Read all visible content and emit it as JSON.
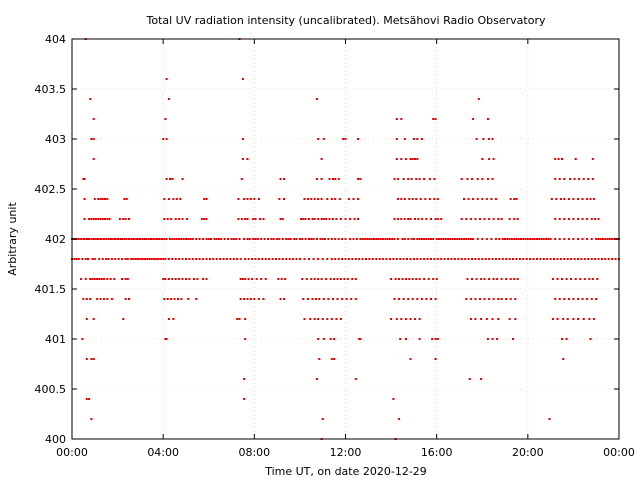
{
  "chart_data": {
    "type": "scatter",
    "title": "Total UV radiation intensity (uncalibrated). Metsähovi Radio Observatory",
    "xlabel": "Time UT, on date 2020-12-29",
    "ylabel": "Arbitrary unit",
    "xlim": [
      0,
      24
    ],
    "ylim": [
      400,
      404
    ],
    "x_ticks": [
      {
        "value": 0,
        "label": "00:00"
      },
      {
        "value": 4,
        "label": "04:00"
      },
      {
        "value": 8,
        "label": "08:00"
      },
      {
        "value": 12,
        "label": "12:00"
      },
      {
        "value": 16,
        "label": "16:00"
      },
      {
        "value": 20,
        "label": "20:00"
      },
      {
        "value": 24,
        "label": "00:00"
      }
    ],
    "y_ticks": [
      {
        "value": 400,
        "label": "400"
      },
      {
        "value": 400.5,
        "label": "400.5"
      },
      {
        "value": 401,
        "label": "401"
      },
      {
        "value": 401.5,
        "label": "401.5"
      },
      {
        "value": 402,
        "label": "402"
      },
      {
        "value": 402.5,
        "label": "402.5"
      },
      {
        "value": 403,
        "label": "403"
      },
      {
        "value": 403.5,
        "label": "403.5"
      },
      {
        "value": 404,
        "label": "404"
      }
    ],
    "grid": true,
    "marker_color": "#e00000",
    "series": [
      {
        "y": 402.0,
        "x": [
          0.0,
          0.05,
          0.1,
          0.15,
          0.2,
          0.3,
          0.4,
          0.5,
          0.55,
          0.65,
          0.7,
          0.75,
          0.85,
          0.95,
          1.0,
          1.1,
          1.15,
          1.25,
          1.3,
          1.4,
          1.5,
          1.6,
          1.7,
          1.75,
          1.85,
          1.9,
          2.0,
          2.05,
          2.15,
          2.2,
          2.3,
          2.4,
          2.5,
          2.6,
          2.7,
          2.75,
          2.85,
          2.95,
          3.0,
          3.1,
          3.2,
          3.25,
          3.35,
          3.45,
          3.5,
          3.6,
          3.7,
          3.75,
          3.85,
          3.95,
          4.05,
          4.15,
          4.3,
          4.4,
          4.5,
          4.6,
          4.7,
          4.8,
          4.9,
          5.0,
          5.1,
          5.2,
          5.3,
          5.45,
          5.6,
          5.75,
          5.9,
          6.0,
          6.1,
          6.25,
          6.35,
          6.45,
          6.55,
          6.7,
          6.85,
          7.0,
          7.1,
          7.2,
          7.35,
          7.55,
          7.7,
          7.8,
          7.95,
          8.05,
          8.15,
          8.3,
          8.45,
          8.6,
          8.75,
          8.85,
          9.0,
          9.1,
          9.25,
          9.4,
          9.5,
          9.6,
          9.75,
          9.85,
          10.0,
          10.1,
          10.25,
          10.4,
          10.5,
          10.6,
          10.75,
          10.9,
          11.0,
          11.1,
          11.25,
          11.4,
          11.55,
          11.7,
          11.85,
          12.0,
          12.2,
          12.35,
          12.5,
          12.65,
          12.75,
          12.85,
          12.95,
          13.05,
          13.15,
          13.25,
          13.35,
          13.45,
          13.55,
          13.65,
          13.75,
          13.85,
          13.95,
          14.05,
          14.15,
          14.3,
          14.5,
          14.6,
          14.75,
          14.9,
          15.0,
          15.15,
          15.25,
          15.35,
          15.45,
          15.55,
          15.65,
          15.75,
          15.85,
          16.0,
          16.1,
          16.2,
          16.3,
          16.4,
          16.5,
          16.6,
          16.7,
          16.8,
          16.9,
          17.0,
          17.1,
          17.2,
          17.3,
          17.4,
          17.5,
          17.6,
          17.8,
          18.0,
          18.2,
          18.4,
          18.6,
          18.75,
          18.9,
          19.0,
          19.1,
          19.2,
          19.3,
          19.4,
          19.5,
          19.6,
          19.7,
          19.8,
          19.9,
          20.0,
          20.1,
          20.2,
          20.3,
          20.4,
          20.5,
          20.6,
          20.7,
          20.8,
          20.9,
          21.0,
          21.2,
          21.4,
          21.6,
          21.8,
          22.0,
          22.2,
          22.4,
          22.6,
          22.8,
          23.0,
          23.1,
          23.2,
          23.3,
          23.4,
          23.5,
          23.6,
          23.7,
          23.8,
          23.9,
          24.0
        ]
      },
      {
        "y": 401.8,
        "x": [
          0.0,
          0.1,
          0.2,
          0.3,
          0.45,
          0.6,
          0.7,
          0.9,
          1.0,
          1.2,
          1.35,
          1.5,
          1.6,
          1.75,
          1.9,
          2.05,
          2.2,
          2.35,
          2.45,
          2.6,
          2.7,
          2.8,
          2.9,
          3.0,
          3.1,
          3.2,
          3.3,
          3.4,
          3.5,
          3.6,
          3.7,
          3.8,
          3.9,
          4.0,
          4.1,
          4.25,
          4.4,
          4.55,
          4.7,
          4.85,
          5.0,
          5.15,
          5.3,
          5.45,
          5.6,
          5.75,
          5.9,
          6.05,
          6.2,
          6.35,
          6.5,
          6.65,
          6.8,
          6.95,
          7.1,
          7.25,
          7.4,
          7.6,
          7.75,
          7.9,
          8.05,
          8.2,
          8.35,
          8.5,
          8.65,
          8.8,
          8.95,
          9.1,
          9.25,
          9.4,
          9.55,
          9.7,
          9.85,
          10.0,
          10.2,
          10.4,
          10.6,
          10.8,
          11.0,
          11.2,
          11.4,
          11.55,
          11.7,
          11.85,
          12.0,
          12.15,
          12.3,
          12.45,
          12.6,
          12.75,
          12.9,
          13.05,
          13.2,
          13.35,
          13.5,
          13.65,
          13.8,
          13.95,
          14.1,
          14.25,
          14.4,
          14.55,
          14.7,
          14.85,
          15.0,
          15.15,
          15.3,
          15.45,
          15.6,
          15.75,
          15.9,
          16.05,
          16.2,
          16.35,
          16.5,
          16.65,
          16.8,
          16.95,
          17.1,
          17.25,
          17.4,
          17.55,
          17.7,
          17.85,
          18.0,
          18.15,
          18.3,
          18.45,
          18.6,
          18.75,
          18.9,
          19.05,
          19.2,
          19.35,
          19.5,
          19.65,
          19.8,
          19.95,
          20.1,
          20.25,
          20.4,
          20.55,
          20.7,
          20.85,
          21.0,
          21.15,
          21.3,
          21.45,
          21.6,
          21.75,
          21.9,
          22.05,
          22.2,
          22.35,
          22.5,
          22.65,
          22.8,
          22.95,
          23.1,
          23.25,
          23.4,
          23.55,
          23.7,
          23.85,
          24.0
        ]
      },
      {
        "y": 402.2,
        "x": [
          0.55,
          0.75,
          0.85,
          0.95,
          1.05,
          1.15,
          1.25,
          1.35,
          1.45,
          1.55,
          1.65,
          2.1,
          2.25,
          2.35,
          2.5,
          4.05,
          4.2,
          4.35,
          4.55,
          4.7,
          4.85,
          5.05,
          5.7,
          5.8,
          5.9,
          7.3,
          7.45,
          7.6,
          7.7,
          7.95,
          8.05,
          8.25,
          8.4,
          9.15,
          9.25,
          10.05,
          10.15,
          10.25,
          10.4,
          10.55,
          10.65,
          10.8,
          10.95,
          11.05,
          11.15,
          11.3,
          11.45,
          11.6,
          11.8,
          12.0,
          12.2,
          12.4,
          12.55,
          14.15,
          14.3,
          14.45,
          14.6,
          14.75,
          14.85,
          15.05,
          15.2,
          15.35,
          15.55,
          15.75,
          15.95,
          16.05,
          16.2,
          17.1,
          17.3,
          17.5,
          17.7,
          17.9,
          18.1,
          18.3,
          18.5,
          18.7,
          18.85,
          19.2,
          19.4,
          19.55,
          21.2,
          21.4,
          21.6,
          21.8,
          22.0,
          22.2,
          22.4,
          22.6,
          22.8,
          22.95,
          23.1
        ]
      },
      {
        "y": 401.6,
        "x": [
          0.4,
          0.6,
          0.8,
          0.9,
          1.0,
          1.1,
          1.2,
          1.3,
          1.4,
          1.55,
          1.7,
          1.85,
          2.2,
          2.35,
          2.45,
          4.0,
          4.1,
          4.25,
          4.4,
          4.55,
          4.7,
          4.85,
          5.0,
          5.15,
          5.35,
          5.5,
          5.75,
          5.9,
          7.4,
          7.5,
          7.6,
          7.75,
          7.9,
          8.1,
          8.3,
          8.5,
          9.05,
          9.2,
          9.35,
          10.1,
          10.3,
          10.5,
          10.65,
          10.8,
          10.95,
          11.15,
          11.35,
          11.5,
          11.65,
          11.8,
          11.95,
          12.1,
          12.3,
          12.45,
          14.0,
          14.2,
          14.35,
          14.5,
          14.65,
          14.8,
          14.95,
          15.1,
          15.25,
          15.45,
          15.65,
          15.85,
          16.0,
          17.35,
          17.55,
          17.75,
          17.95,
          18.1,
          18.3,
          18.5,
          18.65,
          18.85,
          19.05,
          19.25,
          19.4,
          19.55,
          21.1,
          21.3,
          21.5,
          21.7,
          21.9,
          22.1,
          22.3,
          22.5,
          22.7,
          22.85,
          23.05
        ]
      },
      {
        "y": 402.4,
        "x": [
          0.55,
          1.0,
          1.15,
          1.25,
          1.35,
          1.45,
          1.55,
          2.3,
          2.4,
          4.05,
          4.25,
          4.45,
          4.6,
          4.75,
          5.8,
          5.9,
          7.3,
          7.55,
          7.7,
          7.85,
          8.0,
          8.2,
          9.1,
          9.3,
          10.2,
          10.35,
          10.5,
          10.65,
          10.8,
          10.95,
          11.2,
          11.4,
          11.55,
          11.75,
          12.15,
          12.35,
          12.55,
          14.3,
          14.45,
          14.6,
          14.8,
          14.95,
          15.1,
          15.3,
          15.5,
          15.7,
          15.9,
          16.05,
          17.2,
          17.4,
          17.6,
          17.8,
          18.0,
          18.2,
          18.4,
          18.6,
          19.25,
          19.4,
          19.5,
          21.05,
          21.25,
          21.45,
          21.6,
          21.8,
          22.0,
          22.2,
          22.4,
          22.6,
          22.75,
          22.9
        ]
      },
      {
        "y": 401.4,
        "x": [
          0.5,
          0.65,
          0.8,
          1.1,
          1.25,
          1.4,
          1.55,
          1.75,
          2.35,
          2.5,
          4.05,
          4.2,
          4.35,
          4.5,
          4.65,
          4.8,
          5.1,
          5.45,
          7.4,
          7.55,
          7.7,
          7.85,
          8.0,
          8.2,
          8.4,
          9.15,
          9.3,
          10.15,
          10.35,
          10.55,
          10.7,
          10.85,
          11.05,
          11.25,
          11.45,
          11.65,
          11.85,
          12.05,
          12.25,
          12.45,
          14.15,
          14.35,
          14.55,
          14.75,
          14.95,
          15.15,
          15.35,
          15.55,
          15.75,
          15.95,
          17.3,
          17.5,
          17.7,
          17.9,
          18.1,
          18.3,
          18.5,
          18.7,
          18.85,
          19.05,
          19.25,
          19.45,
          21.2,
          21.4,
          21.6,
          21.8,
          22.0,
          22.2,
          22.4,
          22.6,
          22.8,
          23.0
        ]
      },
      {
        "y": 402.6,
        "x": [
          0.5,
          0.55,
          4.15,
          4.3,
          4.4,
          4.85,
          7.45,
          9.15,
          9.3,
          10.75,
          10.95,
          11.3,
          11.45,
          11.55,
          11.7,
          12.55,
          12.65,
          14.15,
          14.3,
          14.55,
          14.75,
          14.9,
          15.1,
          15.25,
          15.45,
          15.7,
          15.9,
          17.1,
          17.35,
          17.55,
          17.8,
          18.0,
          18.25,
          18.45,
          21.2,
          21.4,
          21.6,
          21.85,
          22.05,
          22.25,
          22.45,
          22.65,
          22.85
        ]
      },
      {
        "y": 401.2,
        "x": [
          0.65,
          0.95,
          2.25,
          4.25,
          4.45,
          7.25,
          7.35,
          7.6,
          10.2,
          10.45,
          10.65,
          10.8,
          11.0,
          11.2,
          11.4,
          11.6,
          11.8,
          14.0,
          14.25,
          14.45,
          14.65,
          14.85,
          15.05,
          15.25,
          17.5,
          17.7,
          17.95,
          18.2,
          18.45,
          18.7,
          19.2,
          19.45,
          21.1,
          21.3,
          21.55,
          21.75,
          22.0,
          22.2,
          22.45,
          22.7,
          22.9
        ]
      },
      {
        "y": 402.8,
        "x": [
          0.95,
          7.5,
          7.7,
          10.95,
          14.25,
          14.45,
          14.65,
          14.85,
          14.95,
          15.05,
          15.15,
          18.0,
          18.3,
          18.5,
          21.2,
          21.35,
          21.5,
          22.1,
          22.85
        ]
      },
      {
        "y": 403.0,
        "x": [
          0.85,
          0.95,
          4.0,
          4.15,
          7.5,
          10.8,
          11.05,
          11.9,
          12.0,
          12.55,
          14.25,
          14.6,
          15.0,
          15.15,
          15.35,
          17.75,
          18.05,
          18.3,
          18.45
        ]
      },
      {
        "y": 401.0,
        "x": [
          0.45,
          4.1,
          4.15,
          7.6,
          10.8,
          11.05,
          11.35,
          11.5,
          12.6,
          12.65,
          14.4,
          14.65,
          15.25,
          15.8,
          15.95,
          16.05,
          18.25,
          18.45,
          18.65,
          19.35,
          21.5,
          21.7,
          22.75
        ]
      },
      {
        "y": 400.8,
        "x": [
          0.65,
          0.85,
          0.95,
          10.85,
          11.4,
          11.5,
          14.85,
          15.95,
          21.55
        ]
      },
      {
        "y": 403.2,
        "x": [
          0.95,
          4.1,
          14.25,
          14.45,
          15.85,
          15.95,
          17.6,
          18.25
        ]
      },
      {
        "y": 403.4,
        "x": [
          0.8,
          4.25,
          10.75,
          17.85
        ]
      },
      {
        "y": 403.6,
        "x": [
          4.15,
          7.5
        ]
      },
      {
        "y": 404.0,
        "x": [
          0.6,
          7.35
        ]
      },
      {
        "y": 400.6,
        "x": [
          7.55,
          10.75,
          12.45,
          17.45,
          17.95
        ]
      },
      {
        "y": 400.4,
        "x": [
          0.65,
          0.75,
          7.55,
          14.1
        ]
      },
      {
        "y": 400.2,
        "x": [
          0.85,
          11.0,
          14.35,
          20.95
        ]
      },
      {
        "y": 400.0,
        "x": [
          10.95,
          14.2
        ]
      }
    ]
  }
}
